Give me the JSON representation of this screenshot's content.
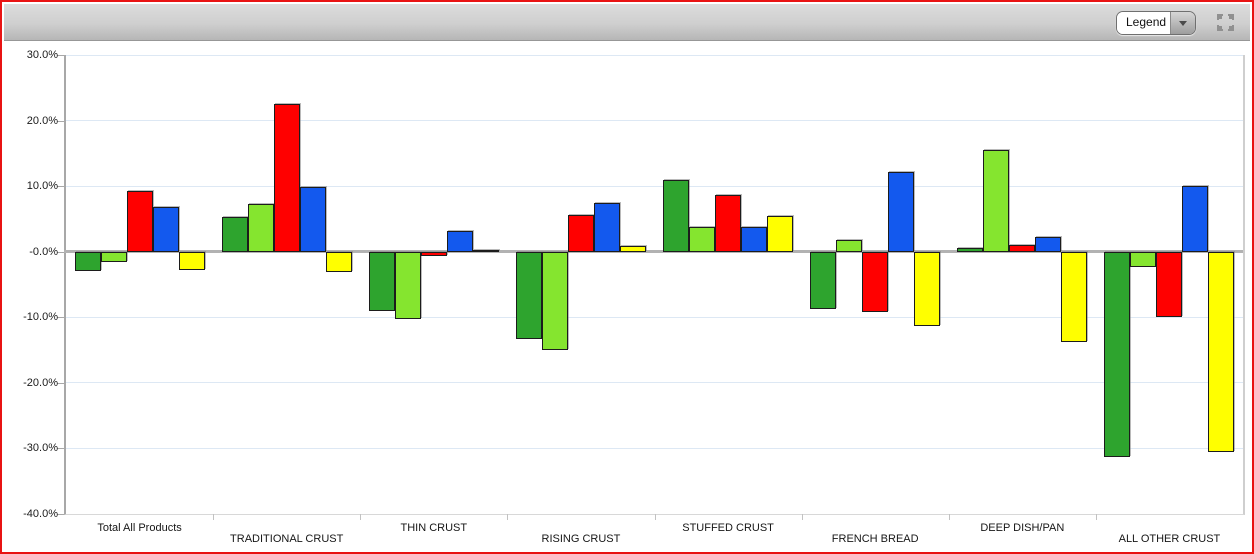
{
  "toolbar": {
    "legend_label": "Legend"
  },
  "colors": {
    "frame_border": "#e81313",
    "toolbar_gray": "#c9c9c9",
    "gridline": "#dde8f4",
    "zero_line": "#b2b2b2",
    "axis": "#a8a8a8",
    "series_green": "#2ea42e",
    "series_light_green": "#85e52f",
    "series_red": "#ff0000",
    "series_blue": "#1359ee",
    "series_yellow": "#ffff00"
  },
  "chart_data": {
    "type": "bar",
    "title": "",
    "xlabel": "",
    "ylabel": "",
    "ylim": [
      -40,
      30
    ],
    "grid": true,
    "legend_position": "collapsed-dropdown-top-right",
    "y_ticks": [
      {
        "value": 30,
        "label": "30.0%"
      },
      {
        "value": 20,
        "label": "20.0%"
      },
      {
        "value": 10,
        "label": "10.0%"
      },
      {
        "value": 0,
        "label": "-0.0%"
      },
      {
        "value": -10,
        "label": "-10.0%"
      },
      {
        "value": -20,
        "label": "-20.0%"
      },
      {
        "value": -30,
        "label": "-30.0%"
      },
      {
        "value": -40,
        "label": "-40.0%"
      }
    ],
    "categories": [
      "Total All Products",
      "TRADITIONAL CRUST",
      "THIN CRUST",
      "RISING CRUST",
      "STUFFED CRUST",
      "FRENCH BREAD",
      "DEEP DISH/PAN",
      "ALL OTHER CRUST"
    ],
    "series": [
      {
        "name": "green",
        "color": "#2ea42e",
        "values": [
          -3.0,
          5.3,
          -9.0,
          -13.3,
          11.0,
          -8.8,
          0.5,
          -31.3
        ]
      },
      {
        "name": "light-green",
        "color": "#85e52f",
        "values": [
          -1.5,
          7.3,
          -10.3,
          -15.0,
          3.8,
          1.8,
          15.5,
          -2.3
        ]
      },
      {
        "name": "red",
        "color": "#ff0000",
        "values": [
          9.2,
          22.6,
          -0.6,
          5.6,
          8.7,
          -9.2,
          1.1,
          -10.0
        ]
      },
      {
        "name": "blue",
        "color": "#1359ee",
        "values": [
          6.8,
          9.8,
          3.2,
          7.4,
          3.7,
          12.2,
          2.2,
          10.0
        ]
      },
      {
        "name": "yellow",
        "color": "#ffff00",
        "values": [
          -2.8,
          -3.1,
          0.3,
          0.8,
          5.5,
          -11.4,
          -13.7,
          -30.5
        ]
      }
    ]
  }
}
